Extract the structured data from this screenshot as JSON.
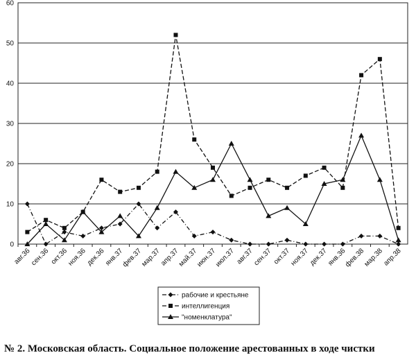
{
  "chart_data": {
    "type": "line",
    "caption": "№ 2. Московская область. Социальное положение арестованных в ходе чистки",
    "categories": [
      "авг.36",
      "сен.36",
      "окт.36",
      "ноя.36",
      "дек.36",
      "янв.37",
      "фев.37",
      "мар.37",
      "апр.37",
      "май.37",
      "июн.37",
      "июл.37",
      "авг.37",
      "сен.37",
      "окт.37",
      "ноя.37",
      "дек.37",
      "янв.36",
      "фев.38",
      "мар.38",
      "апр.38"
    ],
    "series": [
      {
        "name": "рабочие и крестьяне",
        "color": "#111111",
        "line_style": "dashdot",
        "marker": "diamond",
        "values": [
          10,
          0,
          3,
          2,
          4,
          5,
          10,
          4,
          8,
          2,
          3,
          1,
          0,
          0,
          1,
          0,
          0,
          0,
          2,
          2,
          0
        ]
      },
      {
        "name": "интеллигенция",
        "color": "#111111",
        "line_style": "dashed",
        "marker": "square",
        "values": [
          3,
          6,
          4,
          8,
          16,
          13,
          14,
          18,
          52,
          26,
          19,
          12,
          14,
          16,
          14,
          17,
          19,
          14,
          42,
          46,
          4
        ]
      },
      {
        "name": "\"номенклатура\"",
        "color": "#111111",
        "line_style": "solid",
        "marker": "triangle",
        "values": [
          0,
          5,
          1,
          8,
          3,
          7,
          2,
          9,
          18,
          14,
          16,
          25,
          16,
          7,
          9,
          5,
          15,
          16,
          27,
          16,
          1
        ]
      }
    ],
    "ylim": [
      0,
      60
    ],
    "yticks": [
      0,
      10,
      20,
      30,
      40,
      50,
      60
    ],
    "grid": true
  }
}
